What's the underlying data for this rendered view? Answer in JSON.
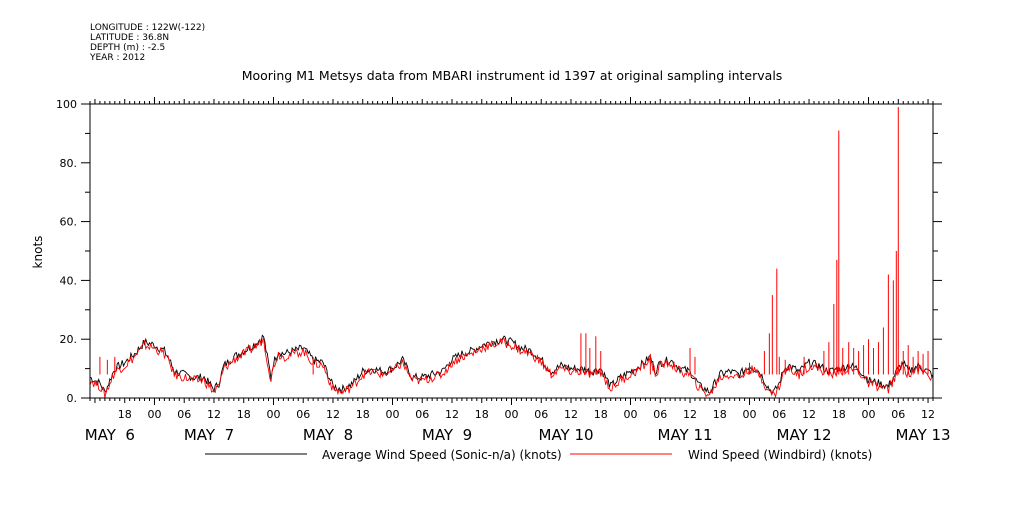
{
  "header": {
    "meta_lines": [
      "LONGITUDE : 122W(-122)",
      "LATITUDE : 36.8N",
      "DEPTH (m) : -2.5",
      "YEAR : 2012"
    ]
  },
  "chart_data": {
    "type": "line",
    "title": "Mooring M1 Metsys data from MBARI instrument id 1397 at original sampling intervals",
    "ylabel": "knots",
    "xlabel": "",
    "ylim": [
      0,
      100
    ],
    "y_ticks": [
      0,
      20,
      40,
      60,
      80,
      100
    ],
    "y_tick_labels": [
      "0.",
      "20.",
      "40.",
      "60.",
      "80.",
      "100"
    ],
    "x_unit": "hours since 2012-05-06 00:00",
    "xlim": [
      -13,
      157
    ],
    "hour_ticks": [
      {
        "x": -6,
        "label": "18"
      },
      {
        "x": 0,
        "label": "00"
      },
      {
        "x": 6,
        "label": "06"
      },
      {
        "x": 12,
        "label": "12"
      },
      {
        "x": 18,
        "label": "18"
      },
      {
        "x": 24,
        "label": "00"
      },
      {
        "x": 30,
        "label": "06"
      },
      {
        "x": 36,
        "label": "12"
      },
      {
        "x": 42,
        "label": "18"
      },
      {
        "x": 48,
        "label": "00"
      },
      {
        "x": 54,
        "label": "06"
      },
      {
        "x": 60,
        "label": "12"
      },
      {
        "x": 66,
        "label": "18"
      },
      {
        "x": 72,
        "label": "00"
      },
      {
        "x": 78,
        "label": "06"
      },
      {
        "x": 84,
        "label": "12"
      },
      {
        "x": 90,
        "label": "18"
      },
      {
        "x": 96,
        "label": "00"
      },
      {
        "x": 102,
        "label": "06"
      },
      {
        "x": 108,
        "label": "12"
      },
      {
        "x": 114,
        "label": "18"
      },
      {
        "x": 120,
        "label": "00"
      },
      {
        "x": 126,
        "label": "06"
      },
      {
        "x": 132,
        "label": "12"
      },
      {
        "x": 138,
        "label": "18"
      },
      {
        "x": 144,
        "label": "00"
      },
      {
        "x": 150,
        "label": "06"
      },
      {
        "x": 156,
        "label": "12"
      }
    ],
    "date_labels": [
      {
        "x": -9,
        "label": "MAY  6"
      },
      {
        "x": 11,
        "label": "MAY  7"
      },
      {
        "x": 35,
        "label": "MAY  8"
      },
      {
        "x": 59,
        "label": "MAY  9"
      },
      {
        "x": 83,
        "label": "MAY 10"
      },
      {
        "x": 107,
        "label": "MAY 11"
      },
      {
        "x": 131,
        "label": "MAY 12"
      },
      {
        "x": 155,
        "label": "MAY 13"
      }
    ],
    "legend_position": "bottom",
    "series": [
      {
        "name": "Average Wind Speed (Sonic-n/a) (knots)",
        "color": "#000000",
        "x": [
          -13,
          -11,
          -10,
          -8,
          -6,
          -4,
          -2,
          0,
          2,
          3,
          4,
          6,
          8,
          10,
          12,
          13,
          14,
          16,
          18,
          20,
          22,
          23.5,
          24,
          25,
          26,
          28,
          30,
          32,
          34,
          35,
          36,
          38,
          40,
          42,
          44,
          46,
          48,
          50,
          52,
          54,
          56,
          58,
          60,
          62,
          64,
          66,
          68,
          70,
          72,
          74,
          76,
          78,
          80,
          82,
          84,
          86,
          88,
          90,
          92,
          94,
          96,
          98,
          100,
          101,
          102,
          104,
          106,
          108,
          110,
          112,
          114,
          116,
          118,
          120,
          122,
          124,
          125,
          126,
          127,
          128,
          130,
          132,
          134,
          136,
          138,
          140,
          142,
          144,
          146,
          148,
          150,
          151,
          152,
          154,
          156,
          157
        ],
        "y": [
          7,
          5,
          2,
          10,
          12,
          15,
          19,
          18,
          16,
          13,
          9,
          8,
          7,
          7,
          3,
          5,
          11,
          14,
          16,
          18,
          21,
          7,
          12,
          16,
          15,
          16,
          17,
          13,
          12,
          8,
          4,
          3,
          5,
          9,
          10,
          9,
          10,
          13,
          7,
          7,
          8,
          9,
          13,
          15,
          16,
          18,
          19,
          20,
          19,
          17,
          16,
          13,
          9,
          11,
          10,
          10,
          9,
          10,
          4,
          7,
          9,
          11,
          14,
          9,
          12,
          13,
          10,
          9,
          4,
          2,
          8,
          9,
          8,
          11,
          9,
          3,
          2,
          5,
          10,
          11,
          9,
          12,
          11,
          9,
          10,
          11,
          10,
          6,
          5,
          4,
          10,
          12,
          9,
          11,
          9,
          8
        ]
      },
      {
        "name": "Wind Speed (Windbird) (knots)",
        "color": "#ff0000",
        "x": [
          -13,
          -11,
          -10,
          -8,
          -6,
          -4,
          -2,
          0,
          2,
          3,
          4,
          6,
          8,
          10,
          12,
          13,
          14,
          16,
          18,
          20,
          22,
          23.5,
          24,
          25,
          26,
          28,
          30,
          32,
          34,
          35,
          36,
          38,
          40,
          42,
          44,
          46,
          48,
          50,
          52,
          54,
          56,
          58,
          60,
          62,
          64,
          66,
          68,
          70,
          72,
          74,
          76,
          78,
          80,
          82,
          84,
          86,
          88,
          90,
          92,
          94,
          96,
          98,
          100,
          101,
          102,
          104,
          106,
          108,
          110,
          112,
          114,
          116,
          118,
          120,
          122,
          124,
          125,
          126,
          127,
          128,
          130,
          132,
          134,
          136,
          138,
          140,
          142,
          144,
          146,
          148,
          150,
          151,
          152,
          154,
          156,
          157
        ],
        "y": [
          6,
          4,
          1,
          9,
          11,
          14,
          18,
          17,
          15,
          12,
          8,
          7,
          6,
          6,
          2,
          4,
          10,
          13,
          15,
          17,
          20,
          6,
          11,
          15,
          14,
          15,
          16,
          12,
          11,
          7,
          3,
          2,
          4,
          8,
          9,
          8,
          9,
          12,
          6,
          6,
          7,
          8,
          12,
          14,
          15,
          17,
          18,
          19,
          18,
          16,
          15,
          12,
          8,
          10,
          9,
          9,
          8,
          9,
          3,
          6,
          8,
          10,
          13,
          8,
          11,
          12,
          9,
          8,
          3,
          1,
          7,
          8,
          7,
          10,
          8,
          2,
          1,
          4,
          9,
          10,
          8,
          11,
          10,
          8,
          9,
          10,
          9,
          5,
          4,
          3,
          9,
          11,
          8,
          10,
          8,
          7
        ]
      }
    ],
    "spikes": [
      {
        "x": -11,
        "y": 14
      },
      {
        "x": -9.5,
        "y": 13
      },
      {
        "x": -8,
        "y": 14
      },
      {
        "x": 32,
        "y": 14
      },
      {
        "x": 86,
        "y": 22
      },
      {
        "x": 87,
        "y": 22
      },
      {
        "x": 87.8,
        "y": 17
      },
      {
        "x": 89,
        "y": 21
      },
      {
        "x": 90,
        "y": 16
      },
      {
        "x": 100,
        "y": 15
      },
      {
        "x": 108,
        "y": 17
      },
      {
        "x": 109,
        "y": 14
      },
      {
        "x": 120,
        "y": 12
      },
      {
        "x": 123,
        "y": 16
      },
      {
        "x": 124,
        "y": 22
      },
      {
        "x": 124.6,
        "y": 35
      },
      {
        "x": 125.5,
        "y": 44
      },
      {
        "x": 126,
        "y": 14
      },
      {
        "x": 127.2,
        "y": 13
      },
      {
        "x": 131,
        "y": 14
      },
      {
        "x": 135,
        "y": 16
      },
      {
        "x": 136,
        "y": 19
      },
      {
        "x": 137,
        "y": 32
      },
      {
        "x": 137.6,
        "y": 47
      },
      {
        "x": 138,
        "y": 91
      },
      {
        "x": 138.8,
        "y": 17
      },
      {
        "x": 140,
        "y": 19
      },
      {
        "x": 141,
        "y": 17
      },
      {
        "x": 142,
        "y": 16
      },
      {
        "x": 143,
        "y": 18
      },
      {
        "x": 144,
        "y": 20
      },
      {
        "x": 145,
        "y": 17
      },
      {
        "x": 146,
        "y": 19
      },
      {
        "x": 147,
        "y": 24
      },
      {
        "x": 148,
        "y": 42
      },
      {
        "x": 149,
        "y": 40
      },
      {
        "x": 149.6,
        "y": 50
      },
      {
        "x": 150,
        "y": 99
      },
      {
        "x": 151,
        "y": 16
      },
      {
        "x": 152,
        "y": 18
      },
      {
        "x": 153,
        "y": 14
      },
      {
        "x": 154,
        "y": 16
      },
      {
        "x": 155,
        "y": 15
      },
      {
        "x": 156,
        "y": 16
      }
    ]
  }
}
